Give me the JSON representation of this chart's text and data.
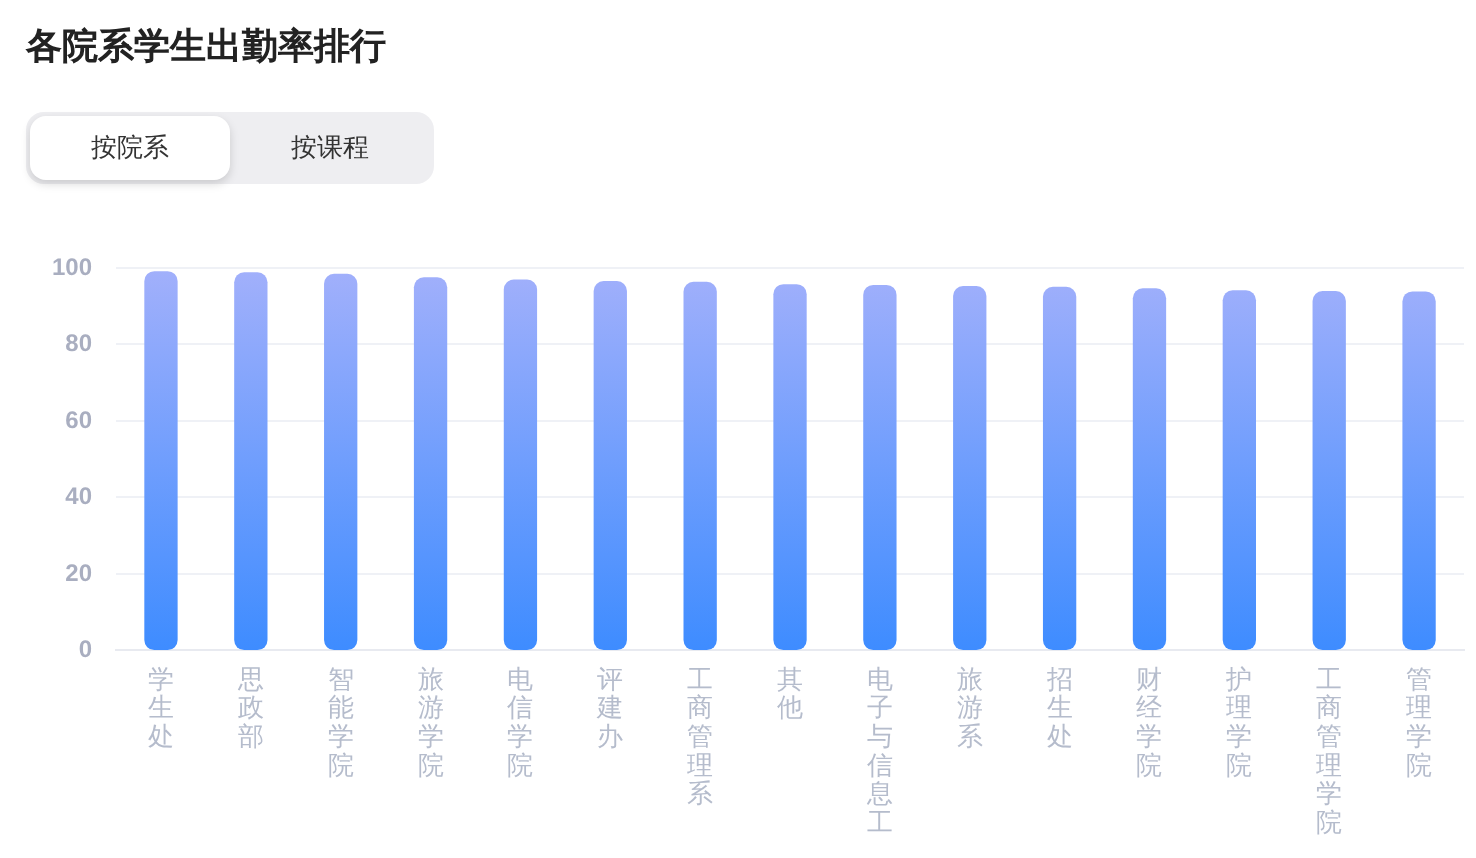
{
  "chart_data": {
    "type": "bar",
    "title": "各院系学生出勤率排行",
    "annotations": [
      "按院系",
      "按课程"
    ],
    "categories": [
      "学生处",
      "思政部",
      "智能学院",
      "旅游学院",
      "电信学院",
      "评建办",
      "工商管理系",
      "其他",
      "电子与信息工",
      "旅游系",
      "招生处",
      "财经学院",
      "护理学院",
      "工商管理学院",
      "管理学院"
    ],
    "values": [
      99.0,
      98.7,
      98.3,
      97.4,
      96.8,
      96.4,
      96.2,
      95.6,
      95.4,
      95.1,
      94.9,
      94.5,
      94.0,
      93.8,
      93.7
    ],
    "color": "#709efd",
    "ylim": [
      0,
      100
    ],
    "yticks": [
      0,
      20,
      40,
      60,
      80,
      100
    ],
    "grid": "y",
    "legend": false
  }
}
